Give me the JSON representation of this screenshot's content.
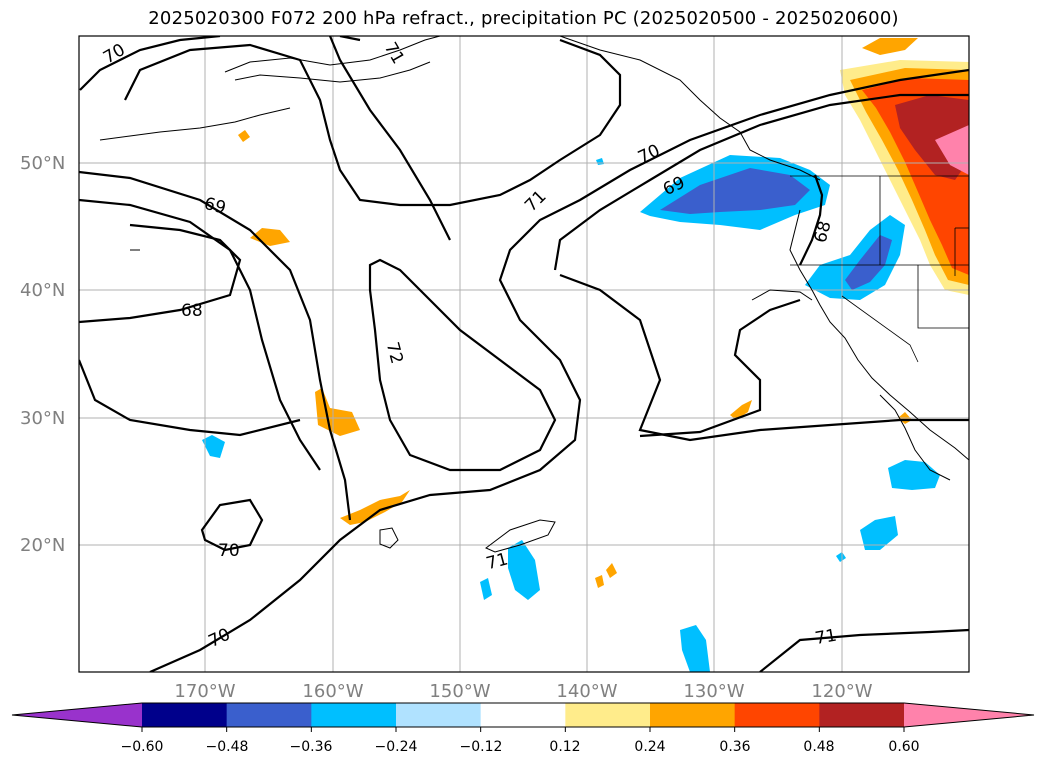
{
  "title": "2025020300 F072 200 hPa refract., precipitation PC (2025020500 - 2025020600)",
  "map": {
    "lat_labels": [
      "50°N",
      "40°N",
      "30°N",
      "20°N"
    ],
    "lon_labels": [
      "170°W",
      "160°W",
      "150°W",
      "140°W",
      "130°W",
      "120°W"
    ],
    "contour_labels": [
      "70",
      "71",
      "70",
      "69",
      "71",
      "72",
      "68",
      "70",
      "71",
      "70",
      "69",
      "68",
      "71"
    ]
  },
  "colorbar": {
    "ticks": [
      "−0.60",
      "−0.48",
      "−0.36",
      "−0.24",
      "−0.12",
      "0.12",
      "0.24",
      "0.36",
      "0.48",
      "0.60"
    ],
    "colors": [
      "#9932cc",
      "#00008b",
      "#3a5fcd",
      "#00bfff",
      "#b0e2ff",
      "#ffffff",
      "#ffec8b",
      "#ffa500",
      "#ff4500",
      "#b22222",
      "#ff82ab"
    ]
  }
}
